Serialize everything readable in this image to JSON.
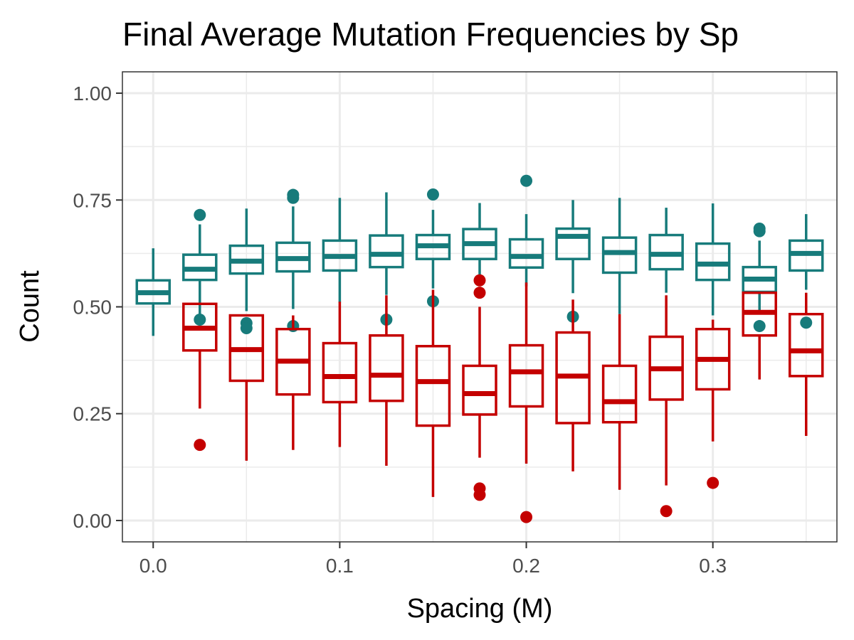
{
  "chart_data": {
    "type": "boxplot",
    "title": "Final Average Mutation Frequencies by Sp",
    "xlabel": "Spacing (M)",
    "ylabel": "Count",
    "xlim": [
      -0.0165,
      0.3665
    ],
    "ylim": [
      -0.05,
      1.05
    ],
    "x_ticks": [
      0.0,
      0.1,
      0.2,
      0.3
    ],
    "x_tick_labels": [
      "0.0",
      "0.1",
      "0.2",
      "0.3"
    ],
    "y_ticks": [
      0.0,
      0.25,
      0.5,
      0.75,
      1.0
    ],
    "y_tick_labels": [
      "0.00",
      "0.25",
      "0.50",
      "0.75",
      "1.00"
    ],
    "grid": true,
    "legend": "none",
    "colors": {
      "teal": "#177b7b",
      "red": "#c40000",
      "grid": "#ebebeb",
      "panel_border": "#333333"
    },
    "series": [
      {
        "color": "teal",
        "boxes": [
          {
            "x": 0.0,
            "whisker_low": 0.432,
            "q1": 0.508,
            "median": 0.533,
            "q3": 0.562,
            "whisker_high": 0.637,
            "outliers": []
          },
          {
            "x": 0.025,
            "whisker_low": 0.483,
            "q1": 0.563,
            "median": 0.588,
            "q3": 0.622,
            "whisker_high": 0.693,
            "outliers": [
              0.715,
              0.47
            ]
          },
          {
            "x": 0.05,
            "whisker_low": 0.49,
            "q1": 0.578,
            "median": 0.607,
            "q3": 0.643,
            "whisker_high": 0.73,
            "outliers": [
              0.462,
              0.45
            ]
          },
          {
            "x": 0.075,
            "whisker_low": 0.495,
            "q1": 0.583,
            "median": 0.613,
            "q3": 0.65,
            "whisker_high": 0.735,
            "outliers": [
              0.762,
              0.755,
              0.455
            ]
          },
          {
            "x": 0.1,
            "whisker_low": 0.51,
            "q1": 0.585,
            "median": 0.618,
            "q3": 0.655,
            "whisker_high": 0.755,
            "outliers": []
          },
          {
            "x": 0.125,
            "whisker_low": 0.528,
            "q1": 0.593,
            "median": 0.623,
            "q3": 0.667,
            "whisker_high": 0.768,
            "outliers": [
              0.47
            ]
          },
          {
            "x": 0.15,
            "whisker_low": 0.543,
            "q1": 0.612,
            "median": 0.643,
            "q3": 0.668,
            "whisker_high": 0.727,
            "outliers": [
              0.763,
              0.513
            ]
          },
          {
            "x": 0.175,
            "whisker_low": 0.565,
            "q1": 0.612,
            "median": 0.648,
            "q3": 0.682,
            "whisker_high": 0.743,
            "outliers": []
          },
          {
            "x": 0.2,
            "whisker_low": 0.548,
            "q1": 0.592,
            "median": 0.618,
            "q3": 0.658,
            "whisker_high": 0.717,
            "outliers": [
              0.795
            ]
          },
          {
            "x": 0.225,
            "whisker_low": 0.532,
            "q1": 0.612,
            "median": 0.665,
            "q3": 0.683,
            "whisker_high": 0.75,
            "outliers": [
              0.477
            ]
          },
          {
            "x": 0.25,
            "whisker_low": 0.483,
            "q1": 0.58,
            "median": 0.627,
            "q3": 0.662,
            "whisker_high": 0.755,
            "outliers": []
          },
          {
            "x": 0.275,
            "whisker_low": 0.533,
            "q1": 0.588,
            "median": 0.623,
            "q3": 0.668,
            "whisker_high": 0.732,
            "outliers": []
          },
          {
            "x": 0.3,
            "whisker_low": 0.48,
            "q1": 0.563,
            "median": 0.6,
            "q3": 0.648,
            "whisker_high": 0.742,
            "outliers": []
          },
          {
            "x": 0.325,
            "whisker_low": 0.483,
            "q1": 0.535,
            "median": 0.565,
            "q3": 0.593,
            "whisker_high": 0.655,
            "outliers": [
              0.683,
              0.677,
              0.455
            ]
          },
          {
            "x": 0.35,
            "whisker_low": 0.54,
            "q1": 0.585,
            "median": 0.625,
            "q3": 0.655,
            "whisker_high": 0.717,
            "outliers": [
              0.463
            ]
          }
        ]
      },
      {
        "color": "red",
        "boxes": [
          {
            "x": 0.025,
            "whisker_low": 0.262,
            "q1": 0.398,
            "median": 0.45,
            "q3": 0.507,
            "whisker_high": 0.507,
            "outliers": [
              0.177
            ]
          },
          {
            "x": 0.05,
            "whisker_low": 0.14,
            "q1": 0.327,
            "median": 0.4,
            "q3": 0.48,
            "whisker_high": 0.48,
            "outliers": []
          },
          {
            "x": 0.075,
            "whisker_low": 0.165,
            "q1": 0.295,
            "median": 0.373,
            "q3": 0.448,
            "whisker_high": 0.48,
            "outliers": []
          },
          {
            "x": 0.1,
            "whisker_low": 0.172,
            "q1": 0.277,
            "median": 0.337,
            "q3": 0.415,
            "whisker_high": 0.512,
            "outliers": []
          },
          {
            "x": 0.125,
            "whisker_low": 0.128,
            "q1": 0.28,
            "median": 0.34,
            "q3": 0.433,
            "whisker_high": 0.527,
            "outliers": []
          },
          {
            "x": 0.15,
            "whisker_low": 0.055,
            "q1": 0.222,
            "median": 0.325,
            "q3": 0.408,
            "whisker_high": 0.54,
            "outliers": []
          },
          {
            "x": 0.175,
            "whisker_low": 0.147,
            "q1": 0.248,
            "median": 0.297,
            "q3": 0.362,
            "whisker_high": 0.5,
            "outliers": [
              0.562,
              0.533,
              0.075,
              0.06
            ]
          },
          {
            "x": 0.2,
            "whisker_low": 0.133,
            "q1": 0.267,
            "median": 0.348,
            "q3": 0.41,
            "whisker_high": 0.557,
            "outliers": [
              0.008
            ]
          },
          {
            "x": 0.225,
            "whisker_low": 0.115,
            "q1": 0.228,
            "median": 0.338,
            "q3": 0.44,
            "whisker_high": 0.517,
            "outliers": []
          },
          {
            "x": 0.25,
            "whisker_low": 0.072,
            "q1": 0.23,
            "median": 0.278,
            "q3": 0.362,
            "whisker_high": 0.483,
            "outliers": []
          },
          {
            "x": 0.275,
            "whisker_low": 0.082,
            "q1": 0.283,
            "median": 0.355,
            "q3": 0.43,
            "whisker_high": 0.527,
            "outliers": [
              0.022
            ]
          },
          {
            "x": 0.3,
            "whisker_low": 0.185,
            "q1": 0.307,
            "median": 0.377,
            "q3": 0.448,
            "whisker_high": 0.47,
            "outliers": [
              0.088
            ]
          },
          {
            "x": 0.325,
            "whisker_low": 0.33,
            "q1": 0.433,
            "median": 0.487,
            "q3": 0.533,
            "whisker_high": 0.533,
            "outliers": []
          },
          {
            "x": 0.35,
            "whisker_low": 0.198,
            "q1": 0.338,
            "median": 0.397,
            "q3": 0.483,
            "whisker_high": 0.533,
            "outliers": []
          }
        ]
      }
    ]
  }
}
